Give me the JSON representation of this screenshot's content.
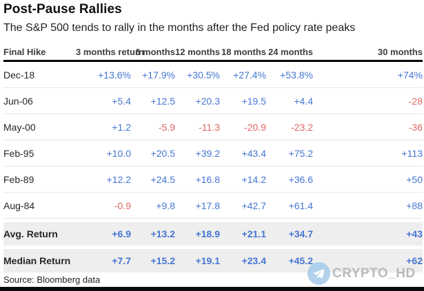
{
  "title": "Post-Pause Rallies",
  "subtitle": "The S&P 500 tends to rally in the months after the Fed policy rate peaks",
  "source": "Source: Bloomberg data",
  "watermark": {
    "text": "CRYPTO_HD",
    "icon": "telegram-plane-icon"
  },
  "colors": {
    "positive": "#4575d2",
    "negative": "#dd6762",
    "summary_band": "#eeeeee",
    "rule": "#000000"
  },
  "chart_data": {
    "type": "table",
    "columns": [
      "Final Hike",
      "3 months return",
      "6 months",
      "12 months",
      "18 months",
      "24 months",
      "30 months"
    ],
    "rows": [
      {
        "label": "Dec-18",
        "values": [
          "+13.6%",
          "+17.9%",
          "+30.5%",
          "+27.4%",
          "+53.8%",
          "+74%"
        ],
        "summary": false
      },
      {
        "label": "Jun-06",
        "values": [
          "+5.4",
          "+12.5",
          "+20.3",
          "+19.5",
          "+4.4",
          "-28"
        ],
        "summary": false
      },
      {
        "label": "May-00",
        "values": [
          "+1.2",
          "-5.9",
          "-11.3",
          "-20.9",
          "-23.2",
          "-36"
        ],
        "summary": false
      },
      {
        "label": "Feb-95",
        "values": [
          "+10.0",
          "+20.5",
          "+39.2",
          "+43.4",
          "+75.2",
          "+113"
        ],
        "summary": false
      },
      {
        "label": "Feb-89",
        "values": [
          "+12.2",
          "+24.5",
          "+16.8",
          "+14.2",
          "+36.6",
          "+50"
        ],
        "summary": false
      },
      {
        "label": "Aug-84",
        "values": [
          "-0.9",
          "+9.8",
          "+17.8",
          "+42.7",
          "+61.4",
          "+88"
        ],
        "summary": false
      },
      {
        "label": "Avg. Return",
        "values": [
          "+6.9",
          "+13.2",
          "+18.9",
          "+21.1",
          "+34.7",
          "+43"
        ],
        "summary": true
      },
      {
        "label": "Median Return",
        "values": [
          "+7.7",
          "+15.2",
          "+19.1",
          "+23.4",
          "+45.2",
          "+62"
        ],
        "summary": true
      }
    ]
  }
}
